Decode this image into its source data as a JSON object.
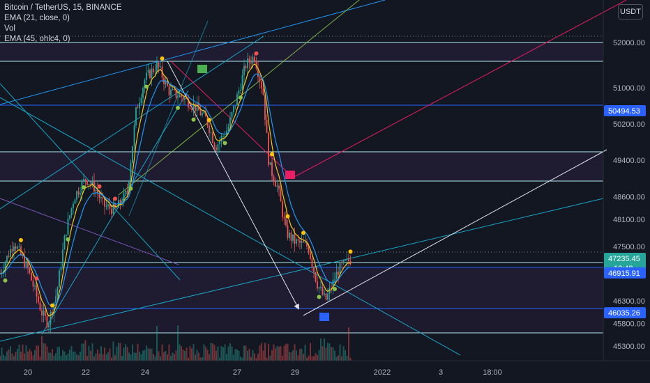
{
  "legend": {
    "symbol": "Bitcoin / TetherUS, 15, BINANCE",
    "ema21": "EMA (21, close, 0)",
    "vol": "Vol",
    "ema45": "EMA (45, ohlc4, 0)"
  },
  "currency_button": "USDT",
  "colors": {
    "background": "#131722",
    "up": "#26a69a",
    "down": "#ef5350",
    "hline": "#b2ebf2",
    "blue": "#2962ff",
    "pink": "#e91e63",
    "teal_line": "#17a7c9",
    "ema_yellow": "#f5c518",
    "ema_blue": "#2196f3"
  },
  "chart_data": {
    "type": "candlestick",
    "title": "Bitcoin / TetherUS, 15, BINANCE",
    "x_tick_labels": [
      "20",
      "22",
      "24",
      "27",
      "29",
      "2022",
      "3",
      "18:00"
    ],
    "y_tick_labels": [
      "52000.00",
      "51000.00",
      "50200.00",
      "49400.00",
      "48600.00",
      "48100.00",
      "47500.00",
      "46300.00",
      "45800.00",
      "45300.00"
    ],
    "price_tags": [
      {
        "value": "50494.53",
        "color": "#2962ff"
      },
      {
        "value": "47235.45",
        "color": "#26a69a",
        "countdown": "12:48"
      },
      {
        "value": "46915.91",
        "color": "#2962ff"
      },
      {
        "value": "46035.26",
        "color": "#2962ff"
      }
    ],
    "ylim": [
      45000,
      52500
    ],
    "close_path": [
      [
        "19",
        46900
      ],
      [
        "19.5",
        47600
      ],
      [
        "20",
        47000
      ],
      [
        "20.5",
        46000
      ],
      [
        "20.7",
        45800
      ],
      [
        "21",
        46500
      ],
      [
        "21.3",
        47800
      ],
      [
        "21.6",
        48600
      ],
      [
        "22",
        49000
      ],
      [
        "22.3",
        48800
      ],
      [
        "22.6",
        48400
      ],
      [
        "23",
        48300
      ],
      [
        "23.4",
        48700
      ],
      [
        "23.7",
        50500
      ],
      [
        "24",
        51200
      ],
      [
        "24.4",
        51500
      ],
      [
        "24.8",
        50900
      ],
      [
        "25.2",
        50800
      ],
      [
        "25.6",
        50600
      ],
      [
        "26",
        50300
      ],
      [
        "26.3",
        49700
      ],
      [
        "26.7",
        50100
      ],
      [
        "27",
        50800
      ],
      [
        "27.3",
        51500
      ],
      [
        "27.6",
        51700
      ],
      [
        "27.9",
        50900
      ],
      [
        "28.1",
        49300
      ],
      [
        "28.4",
        48800
      ],
      [
        "28.7",
        47800
      ],
      [
        "29",
        47600
      ],
      [
        "29.3",
        47500
      ],
      [
        "29.5",
        46700
      ],
      [
        "29.7",
        46300
      ],
      [
        "30",
        47000
      ],
      [
        "30.3",
        47235.45
      ]
    ]
  }
}
